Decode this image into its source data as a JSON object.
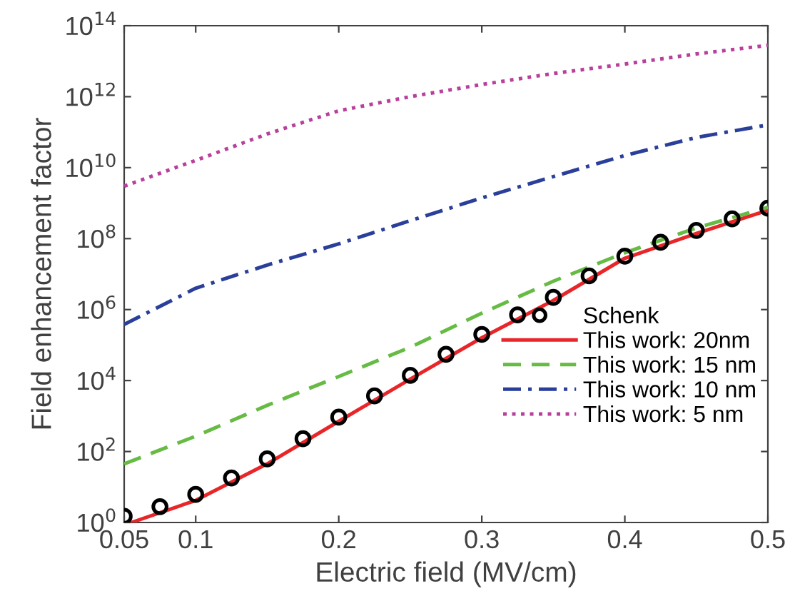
{
  "chart_data": {
    "type": "line",
    "xlabel": "Electric field (MV/cm)",
    "ylabel": "Field enhancement factor",
    "log": "y",
    "grid": false,
    "legend": "lower right",
    "xlim": [
      0.05,
      0.5
    ],
    "xticks": [
      0.05,
      0.1,
      0.2,
      0.3,
      0.4,
      0.5
    ],
    "ylim": [
      1,
      100000000000000.0
    ],
    "yticks": [
      {
        "value": 1,
        "label": "10$^{0}$"
      },
      {
        "value": 100,
        "label": "10$^{2}$"
      },
      {
        "value": 10000,
        "label": "10$^{4}$"
      },
      {
        "value": 1000000.0,
        "label": "10$^{6}$"
      },
      {
        "value": 100000000.0,
        "label": "10$^{8}$"
      },
      {
        "value": 10000000000.0,
        "label": "10$^{10}$"
      },
      {
        "value": 1000000000000.0,
        "label": "10$^{12}$"
      },
      {
        "value": 100000000000000.0,
        "label": "10$^{14}$"
      }
    ],
    "series": [
      {
        "name": "Schenk",
        "type": "scatter",
        "marker": "circle",
        "color": "#000000",
        "x": [
          0.05,
          0.075,
          0.1,
          0.125,
          0.15,
          0.175,
          0.2,
          0.225,
          0.25,
          0.275,
          0.3,
          0.325,
          0.35,
          0.375,
          0.4,
          0.425,
          0.45,
          0.475,
          0.5
        ],
        "values": [
          1.5,
          2.8,
          6.2,
          18,
          62,
          230,
          930,
          3700,
          14000,
          55000,
          200000.0,
          710000.0,
          2200000.0,
          8900000.0,
          32000000.0,
          79000000.0,
          170000000.0,
          360000000.0,
          720000000.0
        ]
      },
      {
        "name": "This work: 20nm",
        "line_style": "solid",
        "color": "#e8262a",
        "x": [
          0.055,
          0.1,
          0.15,
          0.2,
          0.25,
          0.3,
          0.35,
          0.4,
          0.45,
          0.5
        ],
        "values": [
          1.0,
          4.2,
          45,
          710,
          11000,
          160000.0,
          1800000.0,
          28000000.0,
          140000000.0,
          630000000.0
        ]
      },
      {
        "name": "This work: 15 nm",
        "line_style": "dashed",
        "color": "#66bb44",
        "x": [
          0.05,
          0.1,
          0.15,
          0.2,
          0.25,
          0.3,
          0.35,
          0.4,
          0.45,
          0.5
        ],
        "values": [
          45,
          270,
          2000,
          13000,
          87000,
          790000.0,
          6300000.0,
          40000000.0,
          200000000.0,
          760000000.0
        ]
      },
      {
        "name": "This work: 10 nm",
        "line_style": "dashdot",
        "color": "#2a3f9a",
        "x": [
          0.05,
          0.1,
          0.15,
          0.2,
          0.25,
          0.3,
          0.35,
          0.4,
          0.45,
          0.5
        ],
        "values": [
          380000.0,
          4000000.0,
          18000000.0,
          71000000.0,
          320000000.0,
          1400000000.0,
          5600000000.0,
          22000000000.0,
          71000000000.0,
          160000000000.0
        ]
      },
      {
        "name": "This work: 5 nm",
        "line_style": "dotted",
        "color": "#b8409c",
        "x": [
          0.05,
          0.1,
          0.15,
          0.2,
          0.25,
          0.3,
          0.35,
          0.4,
          0.45,
          0.5
        ],
        "values": [
          3000000000.0,
          16000000000.0,
          89000000000.0,
          400000000000.0,
          1000000000000.0,
          2200000000000.0,
          4500000000000.0,
          8300000000000.0,
          16000000000000.0,
          28000000000000.0
        ]
      }
    ]
  }
}
